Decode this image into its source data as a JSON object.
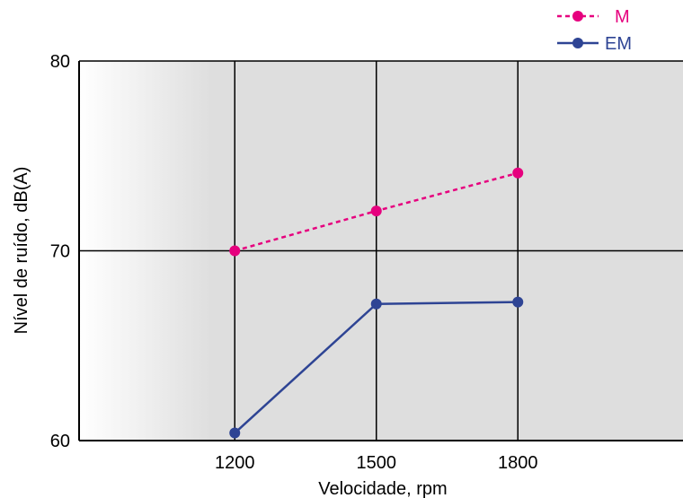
{
  "chart_data": {
    "type": "line",
    "xlabel": "Velocidade, rpm",
    "ylabel": "Nível de ruído, dB(A)",
    "categories": [
      "1200",
      "1500",
      "1800"
    ],
    "x": [
      1200,
      1500,
      1800
    ],
    "xlim": [
      870,
      2150
    ],
    "ylim": [
      60,
      80
    ],
    "yticks": [
      "60",
      "70",
      "80"
    ],
    "grid": true,
    "legend_position": "top-right",
    "series": [
      {
        "name": "M",
        "values": [
          70.0,
          72.1,
          74.1
        ],
        "color": "#e6007e",
        "line_style": "dashed",
        "marker": "circle"
      },
      {
        "name": "EM",
        "values": [
          60.4,
          67.2,
          67.3
        ],
        "color": "#2e4494",
        "line_style": "solid",
        "marker": "circle"
      }
    ],
    "colors": {
      "plot_background": "#dedede",
      "gradient_start": "#ffffff"
    }
  }
}
